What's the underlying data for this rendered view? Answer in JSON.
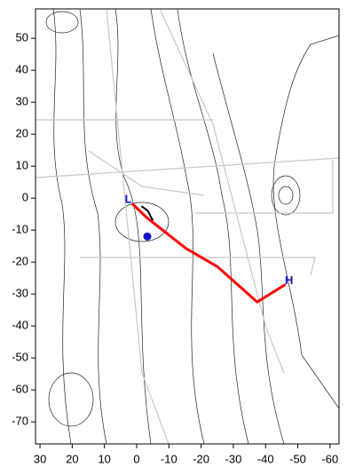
{
  "chart_data": {
    "type": "line",
    "xlim": [
      31.4,
      -62.8
    ],
    "ylim": [
      -76.9,
      59.2
    ],
    "xticks": [
      30,
      20,
      10,
      0,
      -10,
      -20,
      -30,
      -40,
      -50,
      -60
    ],
    "yticks": [
      50,
      40,
      30,
      20,
      10,
      0,
      -10,
      -20,
      -30,
      -40,
      -50,
      -60,
      -70
    ],
    "lines": [
      {
        "color": "#ff0000",
        "x": [
          1.4,
          -3,
          -15.4,
          -25,
          -37.4,
          -46.2
        ],
        "y": [
          -1.7,
          -6,
          -15.8,
          -21.4,
          -32.5,
          -27
        ]
      },
      {
        "color": "#000000",
        "x": [
          -1.5,
          -3.5,
          -5
        ],
        "y": [
          -2.5,
          -4,
          -7
        ]
      }
    ],
    "points": [
      {
        "color": "#1010cc",
        "x": [
          -3.3
        ],
        "y": [
          -12
        ]
      }
    ],
    "annotations": [
      {
        "text": "L",
        "x": 2.6,
        "y": -0.6,
        "color": "#1010cc"
      },
      {
        "text": "H",
        "x": -47.3,
        "y": -26,
        "color": "#1010cc"
      }
    ]
  }
}
